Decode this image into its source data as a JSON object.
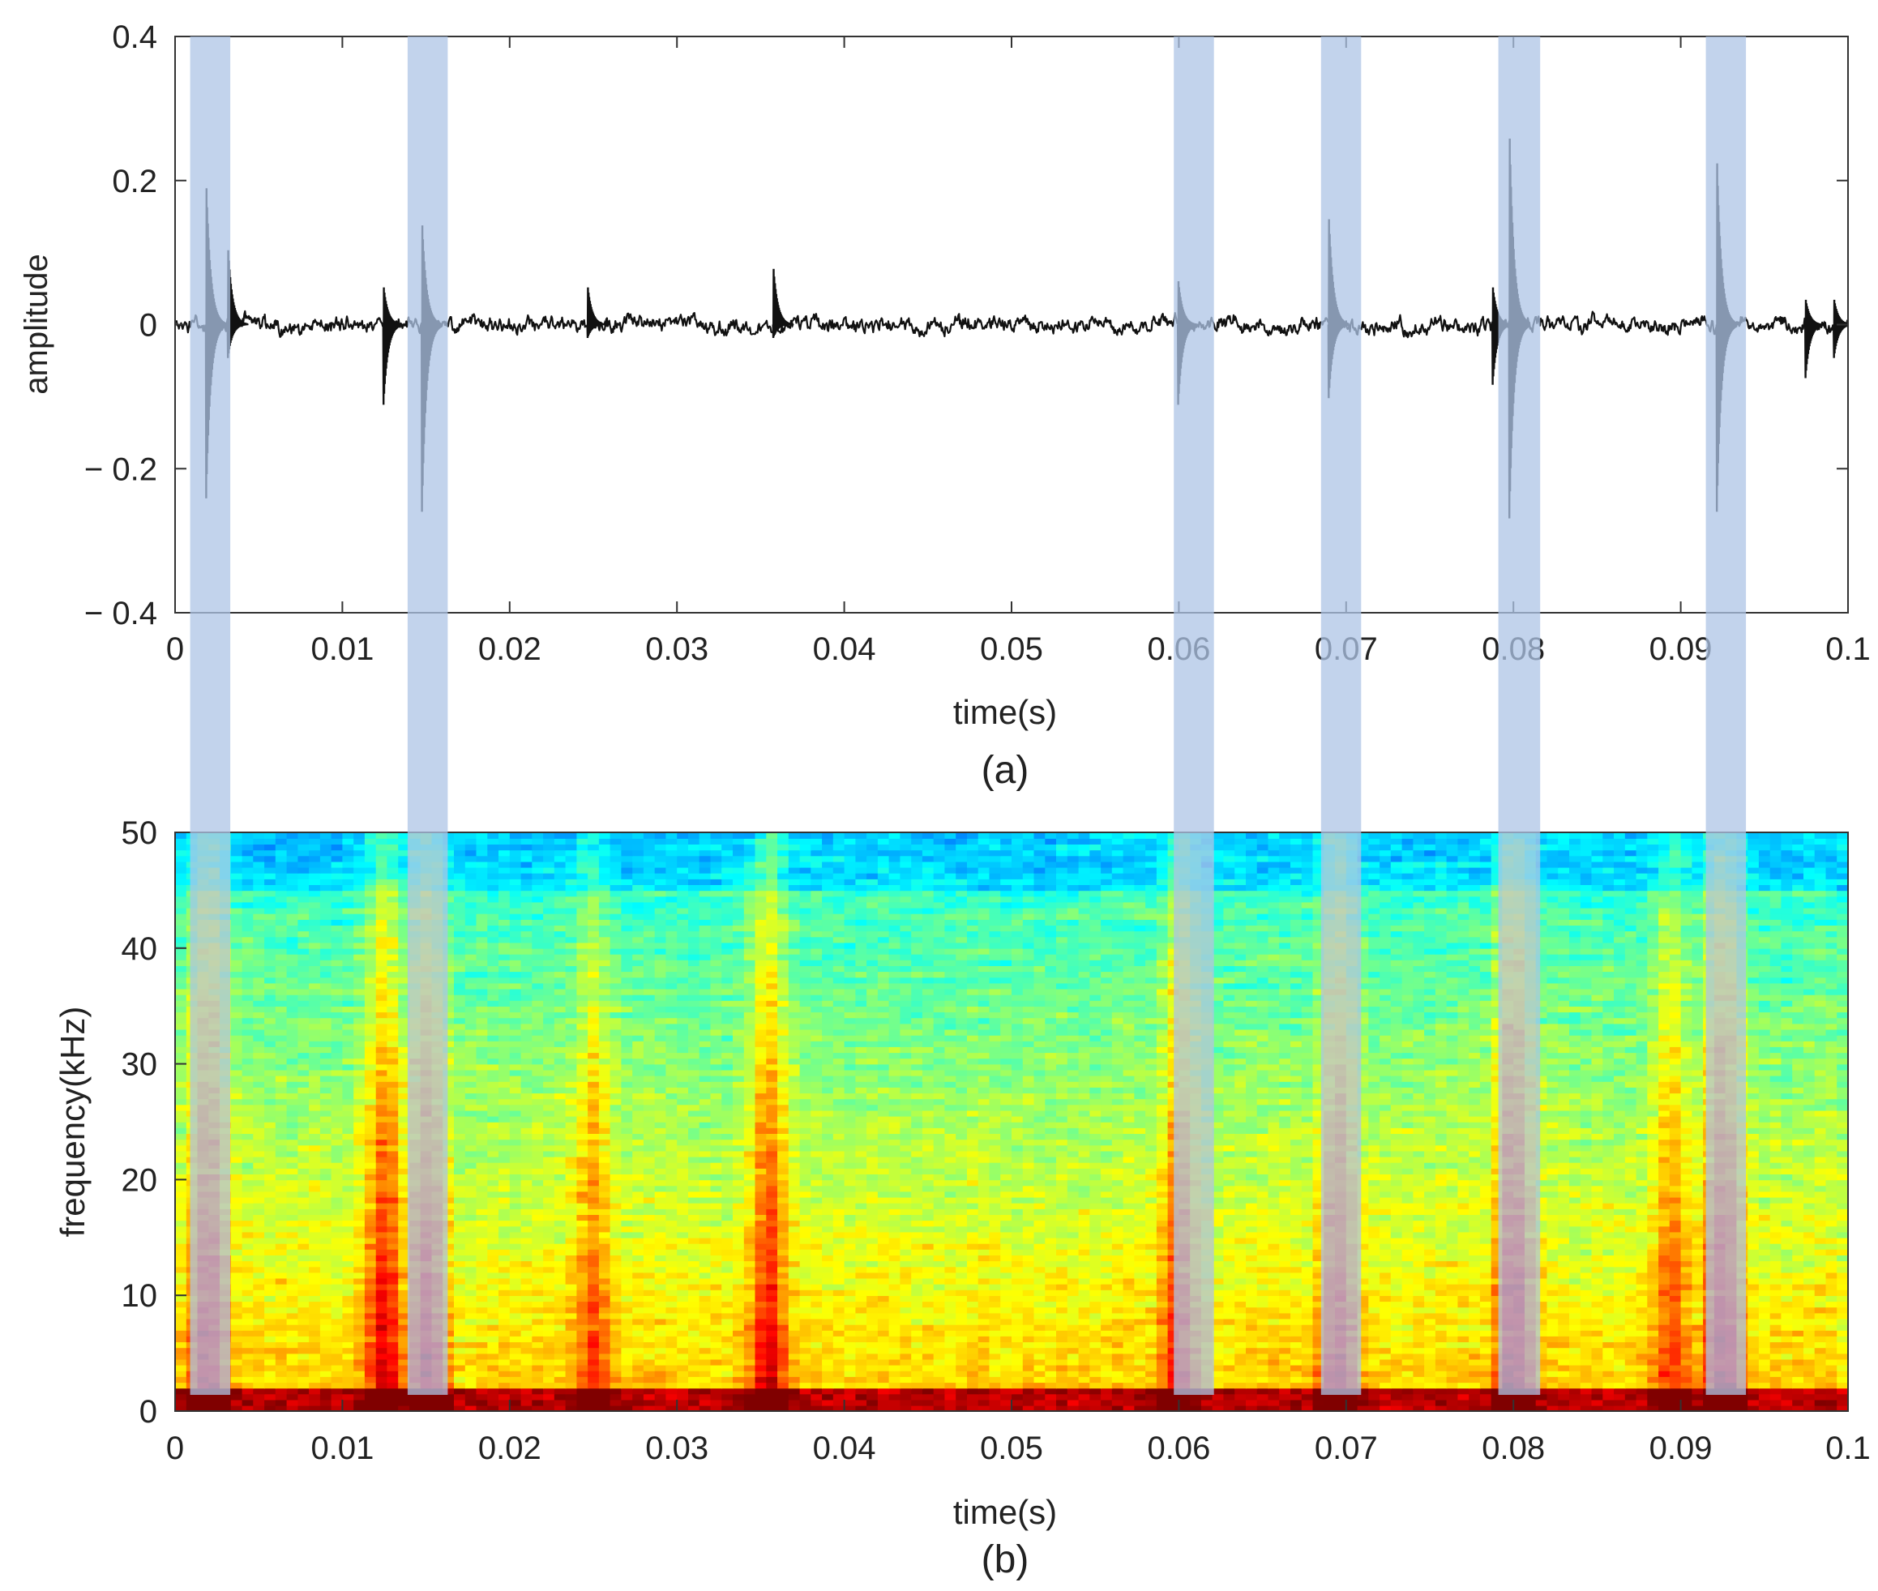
{
  "chart_data": [
    {
      "type": "line",
      "panel_label": "(a)",
      "xlabel": "time(s)",
      "ylabel": "amplitude",
      "xlim": [
        0,
        0.1
      ],
      "ylim": [
        -0.4,
        0.4
      ],
      "xticks": [
        0,
        0.01,
        0.02,
        0.03,
        0.04,
        0.05,
        0.06,
        0.07,
        0.08,
        0.09,
        0.1
      ],
      "xtick_labels": [
        "0",
        "0.01",
        "0.02",
        "0.03",
        "0.04",
        "0.05",
        "0.06",
        "0.07",
        "0.08",
        "0.09",
        "0.1"
      ],
      "yticks": [
        -0.4,
        -0.2,
        0,
        0.2,
        0.4
      ],
      "ytick_labels": [
        "− 0.4",
        "− 0.2",
        "0",
        "0.2",
        "0.4"
      ],
      "grid": false,
      "line_color": "#111111",
      "background_noise_amplitude": 0.02,
      "impulses": [
        {
          "t": 0.0022,
          "peak": 0.22,
          "trough": -0.26
        },
        {
          "t": 0.0035,
          "peak": 0.12,
          "trough": -0.05
        },
        {
          "t": 0.0128,
          "peak": 0.06,
          "trough": -0.12
        },
        {
          "t": 0.0151,
          "peak": 0.16,
          "trough": -0.28
        },
        {
          "t": 0.025,
          "peak": 0.06,
          "trough": -0.02
        },
        {
          "t": 0.0361,
          "peak": 0.09,
          "trough": -0.02
        },
        {
          "t": 0.0603,
          "peak": 0.07,
          "trough": -0.12
        },
        {
          "t": 0.0693,
          "peak": 0.17,
          "trough": -0.11
        },
        {
          "t": 0.0791,
          "peak": 0.06,
          "trough": -0.09
        },
        {
          "t": 0.0801,
          "peak": 0.3,
          "trough": -0.29
        },
        {
          "t": 0.0925,
          "peak": 0.26,
          "trough": -0.28
        },
        {
          "t": 0.0978,
          "peak": 0.04,
          "trough": -0.08
        },
        {
          "t": 0.0995,
          "peak": 0.04,
          "trough": -0.05
        }
      ]
    },
    {
      "type": "heatmap",
      "panel_label": "(b)",
      "xlabel": "time(s)",
      "ylabel": "frequency(kHz)",
      "xlim": [
        0,
        0.1
      ],
      "ylim": [
        0,
        50
      ],
      "xticks": [
        0,
        0.01,
        0.02,
        0.03,
        0.04,
        0.05,
        0.06,
        0.07,
        0.08,
        0.09,
        0.1
      ],
      "xtick_labels": [
        "0",
        "0.01",
        "0.02",
        "0.03",
        "0.04",
        "0.05",
        "0.06",
        "0.07",
        "0.08",
        "0.09",
        "0.1"
      ],
      "yticks": [
        0,
        10,
        20,
        30,
        40,
        50
      ],
      "ytick_labels": [
        "0",
        "10",
        "20",
        "30",
        "40",
        "50"
      ],
      "colormap": "jet",
      "time_bins": 150,
      "freq_bins": 100,
      "low_frequency_band_kHz": 2,
      "energy_columns": [
        {
          "t": 0.002,
          "intensity": 0.85
        },
        {
          "t": 0.0125,
          "intensity": 0.9
        },
        {
          "t": 0.015,
          "intensity": 0.85
        },
        {
          "t": 0.025,
          "intensity": 0.55
        },
        {
          "t": 0.0355,
          "intensity": 0.85
        },
        {
          "t": 0.06,
          "intensity": 0.7
        },
        {
          "t": 0.0695,
          "intensity": 0.75
        },
        {
          "t": 0.08,
          "intensity": 0.95
        },
        {
          "t": 0.0895,
          "intensity": 0.6
        },
        {
          "t": 0.0925,
          "intensity": 0.9
        }
      ]
    }
  ],
  "highlight_bands": {
    "color": "#aec4e6",
    "opacity": 0.75,
    "ranges_s": [
      [
        0.0009,
        0.0033
      ],
      [
        0.0139,
        0.0163
      ],
      [
        0.0597,
        0.0621
      ],
      [
        0.0685,
        0.0709
      ],
      [
        0.0791,
        0.0816
      ],
      [
        0.0915,
        0.0939
      ]
    ]
  }
}
